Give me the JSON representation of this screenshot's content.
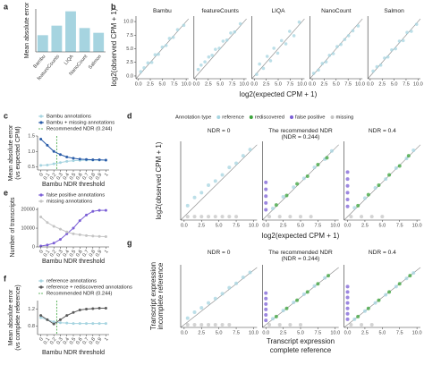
{
  "chart_data": [
    {
      "type": "bar",
      "panel": "a",
      "ylabel": "Mean absolute error",
      "categories": [
        "Bambu",
        "featureCounts",
        "LIQA",
        "NanoCount",
        "Salmon"
      ],
      "values": [
        0.35,
        0.55,
        0.85,
        0.5,
        0.4
      ],
      "color": "#a6d4e0",
      "ylim": [
        0,
        0.9
      ]
    },
    {
      "type": "scatter",
      "panel": "b",
      "xlabel": "log2(expected CPM + 1)",
      "ylabel": "log2(observed CPM + 1)",
      "xlim": [
        -0.5,
        10.5
      ],
      "ylim": [
        -0.5,
        11
      ],
      "xticks": [
        {
          "value": 0,
          "label": "0.0"
        },
        2.5,
        {
          "value": 5,
          "label": "5.0"
        },
        7.5,
        {
          "value": 10,
          "label": "10.0"
        }
      ],
      "yticks": [
        {
          "value": 0,
          "label": "0.0"
        },
        2.5,
        {
          "value": 5,
          "label": "5.0"
        },
        7.5,
        {
          "value": 10,
          "label": "10.0"
        }
      ],
      "color": "#a6d4e0",
      "facets": [
        {
          "title": "Bambu",
          "x": [
            0.5,
            1.2,
            2,
            2.8,
            3.5,
            4.2,
            5,
            5.8,
            6.5,
            7.3,
            8.2,
            9.5
          ],
          "y": [
            0.8,
            1.5,
            2.4,
            2.5,
            3.9,
            4,
            5.3,
            5.6,
            6.9,
            7.1,
            8.5,
            9.3
          ]
        },
        {
          "title": "featureCounts",
          "x": [
            0.4,
            1,
            1.8,
            2.6,
            3.3,
            4,
            4.8,
            5.6,
            6.4,
            7.2,
            8,
            9.2
          ],
          "y": [
            1.2,
            2,
            2.6,
            3.5,
            3.8,
            4.9,
            5.1,
            6.4,
            6.6,
            7.9,
            8.1,
            9.6
          ]
        },
        {
          "title": "LIQA",
          "x": [
            0.5,
            1.1,
            1.9,
            2.7,
            3.4,
            4.1,
            4.9,
            5.7,
            6.6,
            7.4,
            8.3,
            9.4
          ],
          "y": [
            0.3,
            2.2,
            1.4,
            3.6,
            2.8,
            5.1,
            4.2,
            6.5,
            5.9,
            8.2,
            7.4,
            9.9
          ]
        },
        {
          "title": "NanoCount",
          "x": [
            0.3,
            1.3,
            2.1,
            2.9,
            3.6,
            4.4,
            5.2,
            6,
            6.8,
            7.6,
            8.5,
            9.6
          ],
          "y": [
            0.5,
            1.1,
            2.3,
            2.6,
            3.8,
            4.1,
            5.4,
            5.8,
            6.7,
            7.4,
            8.3,
            9.2
          ]
        },
        {
          "title": "Salmon",
          "x": [
            0.6,
            1.4,
            2.2,
            3,
            3.7,
            4.5,
            5.3,
            6.1,
            6.9,
            7.7,
            8.6,
            9.7
          ],
          "y": [
            0.9,
            1.7,
            2,
            3.3,
            3.5,
            4.8,
            5,
            6.4,
            6.5,
            8,
            8.2,
            9.5
          ]
        }
      ]
    },
    {
      "type": "line",
      "panel": "c",
      "ylabel": [
        "Mean absolute error",
        "(vs expected CPM)"
      ],
      "xlabel": "Bambu NDR threshold",
      "x": [
        0,
        0.1,
        0.2,
        0.3,
        0.4,
        0.5,
        0.6,
        0.7,
        0.8,
        0.9,
        1
      ],
      "xlim": [
        -0.05,
        1.05
      ],
      "xticks": [
        0,
        0.1,
        0.2,
        0.3,
        0.4,
        0.5,
        0.6,
        0.7,
        0.8,
        0.9,
        1
      ],
      "ylim": [
        0.4,
        1.5
      ],
      "yticks": [
        0.5,
        {
          "value": 1,
          "label": "1.0"
        },
        1.5
      ],
      "series": [
        {
          "name": "Bambu annotations",
          "color": "#a6d4e0",
          "values": [
            0.55,
            0.56,
            0.6,
            0.64,
            0.68,
            0.7,
            0.71,
            0.72,
            0.72,
            0.72,
            0.72
          ]
        },
        {
          "name": "Bambu + missing annotations",
          "color": "#2a5ca8",
          "values": [
            1.4,
            1.2,
            1.0,
            0.9,
            0.82,
            0.78,
            0.75,
            0.74,
            0.73,
            0.73,
            0.72
          ]
        }
      ],
      "vline": {
        "name": "Recommended NDR (0.244)",
        "value": 0.244,
        "color": "#3aa33a"
      }
    },
    {
      "type": "line",
      "panel": "e",
      "ylabel": "Number of transcripts",
      "xlabel": "Bambu NDR threshold",
      "x": [
        0,
        0.1,
        0.2,
        0.3,
        0.4,
        0.5,
        0.6,
        0.7,
        0.8,
        0.9,
        1
      ],
      "xlim": [
        -0.05,
        1.05
      ],
      "xticks": [
        0,
        0.1,
        0.2,
        0.3,
        0.4,
        0.5,
        0.6,
        0.7,
        0.8,
        0.9,
        1
      ],
      "ylim": [
        0,
        21000
      ],
      "yticks": [
        0,
        10000,
        20000
      ],
      "series": [
        {
          "name": "false positive annotations",
          "color": "#7b5fd6",
          "values": [
            500,
            1000,
            2000,
            4000,
            7000,
            10000,
            14000,
            17000,
            19000,
            19500,
            19500
          ]
        },
        {
          "name": "missing annotations",
          "color": "#c4c4c4",
          "values": [
            16000,
            13000,
            11000,
            9500,
            8000,
            7000,
            6500,
            6000,
            5800,
            5600,
            5500
          ]
        }
      ]
    },
    {
      "type": "line",
      "panel": "f",
      "ylabel": [
        "Mean absolute error",
        "(vs complete reference)"
      ],
      "xlabel": "Bambu NDR threshold",
      "x": [
        0,
        0.1,
        0.2,
        0.3,
        0.4,
        0.5,
        0.6,
        0.7,
        0.8,
        0.9,
        1
      ],
      "xlim": [
        -0.05,
        1.05
      ],
      "xticks": [
        0,
        0.1,
        0.2,
        0.3,
        0.4,
        0.5,
        0.6,
        0.7,
        0.8,
        0.9,
        1
      ],
      "ylim": [
        0.6,
        1.4
      ],
      "yticks": [
        0.8,
        1.2
      ],
      "series": [
        {
          "name": "reference annotations",
          "color": "#a6d4e0",
          "values": [
            1.0,
            0.95,
            0.9,
            0.88,
            0.87,
            0.86,
            0.86,
            0.86,
            0.86,
            0.86,
            0.86
          ]
        },
        {
          "name": "reference + rediscovered annotations",
          "color": "#5a5a5a",
          "values": [
            1.05,
            0.95,
            0.85,
            0.95,
            1.05,
            1.12,
            1.18,
            1.2,
            1.21,
            1.22,
            1.22
          ]
        }
      ],
      "vline": {
        "name": "Recommended NDR (0.244)",
        "value": 0.244,
        "color": "#3aa33a"
      }
    },
    {
      "type": "scatter",
      "panel": "d",
      "xlabel": "log2(expected CPM + 1)",
      "ylabel": "log2(observed CPM + 1)",
      "legend_title": "Annotation type",
      "xlim": [
        -0.5,
        10.5
      ],
      "ylim": [
        -0.5,
        11
      ],
      "xticks": [
        {
          "value": 0,
          "label": "0.0"
        },
        2.5,
        {
          "value": 5,
          "label": "5.0"
        },
        7.5,
        {
          "value": 10,
          "label": "10.0"
        }
      ],
      "facets": [
        {
          "title": [
            "NDR = 0"
          ],
          "series": [
            {
              "name": "reference",
              "color": "#a6d4e0",
              "x": [
                0.5,
                1.5,
                2.5,
                3.5,
                4.5,
                5.5,
                6.5,
                7.5,
                8.5,
                9.5
              ],
              "y": [
                1.6,
                2.8,
                3.5,
                4.6,
                5.2,
                6.1,
                7.2,
                7.8,
                8.9,
                9.8
              ]
            },
            {
              "name": "missing",
              "color": "#c4c4c4",
              "x": [
                0.5,
                1.5,
                2.5,
                3.5,
                4.5,
                5.5,
                6.5,
                7.5
              ],
              "y": [
                0,
                0,
                0,
                0,
                0,
                0,
                0,
                0
              ]
            }
          ]
        },
        {
          "title": [
            "The recommended NDR",
            "(NDR = 0.244)"
          ],
          "series": [
            {
              "name": "reference",
              "color": "#a6d4e0",
              "x": [
                1,
                2.5,
                4,
                5.5,
                7,
                8.5,
                9.5
              ],
              "y": [
                1.2,
                2.9,
                4.3,
                5.6,
                7.2,
                8.4,
                9.6
              ]
            },
            {
              "name": "rediscovered",
              "color": "#3aa33a",
              "x": [
                1.5,
                3,
                4.5,
                6,
                7.5,
                8.8
              ],
              "y": [
                1.7,
                3.1,
                4.8,
                5.9,
                7.6,
                8.6
              ]
            },
            {
              "name": "false positive",
              "color": "#7b5fd6",
              "x": [
                0,
                0,
                0,
                0,
                0
              ],
              "y": [
                1,
                2,
                3,
                4,
                5
              ]
            },
            {
              "name": "missing",
              "color": "#c4c4c4",
              "x": [
                0.5,
                2,
                3.5,
                5,
                6.5
              ],
              "y": [
                0,
                0,
                0,
                0,
                0
              ]
            }
          ]
        },
        {
          "title": [
            "NDR = 0.4"
          ],
          "series": [
            {
              "name": "reference",
              "color": "#a6d4e0",
              "x": [
                1,
                2.5,
                4,
                5.5,
                7,
                8.5,
                9.5
              ],
              "y": [
                1.3,
                2.7,
                4.2,
                5.5,
                7.1,
                8.5,
                9.7
              ]
            },
            {
              "name": "rediscovered",
              "color": "#3aa33a",
              "x": [
                1.5,
                3,
                4.5,
                6,
                7.5,
                8.8
              ],
              "y": [
                1.6,
                3.2,
                4.6,
                6.1,
                7.4,
                8.9
              ]
            },
            {
              "name": "false positive",
              "color": "#7b5fd6",
              "x": [
                0,
                0,
                0,
                0,
                0,
                0
              ],
              "y": [
                1.5,
                2.5,
                3.5,
                4.5,
                5.5,
                6.5
              ]
            },
            {
              "name": "missing",
              "color": "#c4c4c4",
              "x": [
                0.5,
                2,
                3.5,
                5
              ],
              "y": [
                0,
                0,
                0,
                0
              ]
            }
          ]
        }
      ]
    },
    {
      "type": "scatter",
      "panel": "g",
      "xlabel": [
        "Transcript expression",
        "complete reference"
      ],
      "ylabel": [
        "Transcript expression",
        "incomplete reference"
      ],
      "xlim": [
        -0.5,
        10.5
      ],
      "ylim": [
        -0.5,
        11
      ],
      "xticks": [
        {
          "value": 0,
          "label": "0.0"
        },
        2.5,
        {
          "value": 5,
          "label": "5.0"
        },
        7.5,
        {
          "value": 10,
          "label": "10.0"
        }
      ],
      "facets": [
        {
          "title": [
            "NDR = 0"
          ],
          "series": [
            {
              "name": "reference",
              "color": "#a6d4e0",
              "x": [
                0.5,
                1.5,
                2.5,
                3.5,
                4.5,
                5.5,
                6.5,
                7.5,
                8.5,
                9.5
              ],
              "y": [
                1.2,
                2.3,
                3.1,
                4,
                4.8,
                5.7,
                6.8,
                7.6,
                8.7,
                9.6
              ]
            },
            {
              "name": "missing",
              "color": "#c4c4c4",
              "x": [
                0.5,
                1.5,
                2.5,
                3.5,
                4.5,
                5.5,
                6.5
              ],
              "y": [
                0,
                0,
                0,
                0,
                0,
                0,
                0
              ]
            }
          ]
        },
        {
          "title": [
            "The recommended NDR",
            "(NDR = 0.244)"
          ],
          "series": [
            {
              "name": "reference",
              "color": "#a6d4e0",
              "x": [
                1,
                2.5,
                4,
                5.5,
                7,
                8.5
              ],
              "y": [
                1.1,
                2.6,
                4.1,
                5.6,
                7.1,
                8.6
              ]
            },
            {
              "name": "rediscovered",
              "color": "#3aa33a",
              "x": [
                1.5,
                3,
                4.5,
                6,
                7.5,
                9
              ],
              "y": [
                1.5,
                3,
                4.5,
                6,
                7.5,
                9
              ]
            },
            {
              "name": "false positive",
              "color": "#7b5fd6",
              "x": [
                0,
                0,
                0,
                0,
                0,
                0
              ],
              "y": [
                0.8,
                1.8,
                2.8,
                3.8,
                4.8,
                5.8
              ]
            },
            {
              "name": "missing",
              "color": "#c4c4c4",
              "x": [
                0.5,
                2,
                3.5,
                5
              ],
              "y": [
                0,
                0,
                0,
                0
              ]
            }
          ]
        },
        {
          "title": [
            "NDR = 0.4"
          ],
          "series": [
            {
              "name": "reference",
              "color": "#a6d4e0",
              "x": [
                1,
                2.5,
                4,
                5.5,
                7,
                8.5,
                9.5
              ],
              "y": [
                1,
                2.5,
                4,
                5.5,
                7,
                8.5,
                9.5
              ]
            },
            {
              "name": "rediscovered",
              "color": "#3aa33a",
              "x": [
                1.5,
                3,
                4.5,
                6,
                7.5,
                9
              ],
              "y": [
                1.5,
                3,
                4.5,
                6,
                7.5,
                9
              ]
            },
            {
              "name": "false positive",
              "color": "#7b5fd6",
              "x": [
                0,
                0,
                0,
                0,
                0,
                0,
                0
              ],
              "y": [
                1,
                2,
                3,
                4,
                5,
                6,
                7
              ]
            },
            {
              "name": "missing",
              "color": "#c4c4c4",
              "x": [
                0.5,
                2,
                3.5
              ],
              "y": [
                0,
                0,
                0
              ]
            }
          ]
        }
      ]
    }
  ]
}
